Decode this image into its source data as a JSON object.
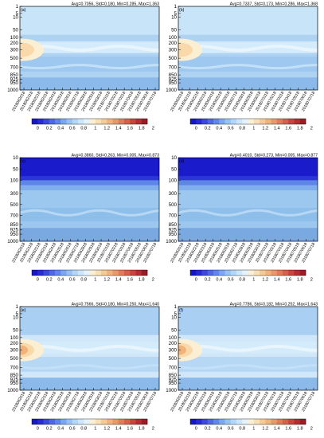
{
  "figure": {
    "colorbar": {
      "tick_labels": [
        "0",
        "0.2",
        "0.4",
        "0.6",
        "0.8",
        "1",
        "1.2",
        "1.4",
        "1.6",
        "1.8",
        "2"
      ],
      "colors": [
        "#1616c8",
        "#2929d6",
        "#3b48de",
        "#4d67e6",
        "#5f86ee",
        "#7aa6f4",
        "#96c2f7",
        "#b3d7fa",
        "#cde6fb",
        "#e4f2fd",
        "#fbf0d6",
        "#f9dfb5",
        "#f6ca93",
        "#f2b37a",
        "#eb9868",
        "#e27c58",
        "#d76049",
        "#c9443c",
        "#b52d32",
        "#9c1b28"
      ]
    }
  },
  "chart_data": [
    {
      "type": "heatmap",
      "panel_label": "(a)",
      "stats": "Avg=0.7056, Std=0.180, Min=0.285, Max=1.363",
      "y_tick_labels": [
        "1",
        "5",
        "10",
        "50",
        "100",
        "200",
        "300",
        "500",
        "700",
        "850",
        "925",
        "950",
        "1000"
      ],
      "x_tick_labels": [
        "2018062018",
        "2018062118",
        "2018062218",
        "2018062318",
        "2018062418",
        "2018062518",
        "2018062618",
        "2018062718",
        "2018062818",
        "2018062918",
        "2018063018",
        "2018070118",
        "2018070218",
        "2018070318",
        "2018070418",
        "2018070518",
        "2018070618",
        "2018070718"
      ],
      "color_scale": [
        0,
        2
      ],
      "features": {
        "peak_value": 1.3,
        "peak_pressure_hpa": 250,
        "top_fill": "#c7e4f8",
        "band_fill": "#aed3f2",
        "low_fill": "#9ec8ef",
        "surface_fill": "#8ab9ea"
      }
    },
    {
      "type": "heatmap",
      "panel_label": "(b)",
      "stats": "Avg=0.7337, Std=0.173, Min=0.286, Max=1.368",
      "y_tick_labels": [
        "1",
        "5",
        "10",
        "50",
        "100",
        "200",
        "300",
        "500",
        "700",
        "850",
        "925",
        "950",
        "1000"
      ],
      "x_tick_labels": [
        "2018062018",
        "2018062118",
        "2018062218",
        "2018062318",
        "2018062418",
        "2018062518",
        "2018062618",
        "2018062718",
        "2018062818",
        "2018062918",
        "2018063018",
        "2018070118",
        "2018070218",
        "2018070318",
        "2018070418",
        "2018070518",
        "2018070618",
        "2018070718"
      ],
      "color_scale": [
        0,
        2
      ],
      "features": {
        "peak_value": 1.3,
        "peak_pressure_hpa": 250,
        "top_fill": "#c7e4f8",
        "band_fill": "#aed3f2",
        "low_fill": "#9ec8ef",
        "surface_fill": "#8ab9ea"
      }
    },
    {
      "type": "heatmap",
      "panel_label": "(c)",
      "stats": "Avg=0.3860, Std=0.263, Min=0.005, Max=0.873",
      "y_tick_labels": [
        "10",
        "50",
        "100",
        "300",
        "500",
        "700",
        "850",
        "925",
        "950",
        "1000"
      ],
      "x_tick_labels": [
        "2018062018",
        "2018062118",
        "2018062218",
        "2018062318",
        "2018062418",
        "2018062518",
        "2018062618",
        "2018062718",
        "2018062818",
        "2018062918",
        "2018063018",
        "2018070118",
        "2018070218",
        "2018070318",
        "2018070418",
        "2018070518",
        "2018070618",
        "2018070718"
      ],
      "color_scale": [
        0,
        2
      ],
      "features": {
        "top_fill": "#1a1ccc",
        "band_fill": "#9cc8ef",
        "low_fill": "#8ebeea",
        "surface_fill": "#7aa9e2"
      }
    },
    {
      "type": "heatmap",
      "panel_label": "(d)",
      "stats": "Avg=0.4010, Std=0.273, Min=0.005, Max=0.877",
      "y_tick_labels": [
        "10",
        "50",
        "100",
        "300",
        "500",
        "700",
        "850",
        "925",
        "950",
        "1000"
      ],
      "x_tick_labels": [
        "2018062018",
        "2018062118",
        "2018062218",
        "2018062318",
        "2018062418",
        "2018062518",
        "2018062618",
        "2018062718",
        "2018062818",
        "2018062918",
        "2018063018",
        "2018070118",
        "2018070218",
        "2018070318",
        "2018070418",
        "2018070518",
        "2018070618",
        "2018070718"
      ],
      "color_scale": [
        0,
        2
      ],
      "features": {
        "top_fill": "#1a1ccc",
        "band_fill": "#9cc8ef",
        "low_fill": "#8ebeea",
        "surface_fill": "#7aa9e2"
      }
    },
    {
      "type": "heatmap",
      "panel_label": "(e)",
      "stats": "Avg=0.7566, Std=0.180, Min=0.250, Max=1.640",
      "y_tick_labels": [
        "1",
        "5",
        "10",
        "50",
        "100",
        "200",
        "300",
        "500",
        "700",
        "850",
        "925",
        "950",
        "1000"
      ],
      "x_tick_labels": [
        "2018062018",
        "2018062118",
        "2018062218",
        "2018062318",
        "2018062418",
        "2018062518",
        "2018062618",
        "2018062718",
        "2018062818",
        "2018062918",
        "2018063018",
        "2018070118",
        "2018070218",
        "2018070318",
        "2018070418",
        "2018070518",
        "2018070618",
        "2018070718"
      ],
      "color_scale": [
        0,
        2
      ],
      "features": {
        "peak_value": 1.6,
        "peak_pressure_hpa": 250,
        "top_fill": "#a9cff2",
        "band_fill": "#cfe7f9",
        "low_fill": "#b6d8f5",
        "surface_fill": "#8ab9ea"
      }
    },
    {
      "type": "heatmap",
      "panel_label": "(f)",
      "stats": "Avg=0.7786, Std=0.182, Min=0.252, Max=1.643",
      "y_tick_labels": [
        "1",
        "5",
        "10",
        "50",
        "100",
        "200",
        "300",
        "500",
        "700",
        "850",
        "925",
        "950",
        "1000"
      ],
      "x_tick_labels": [
        "2018062018",
        "2018062118",
        "2018062218",
        "2018062318",
        "2018062418",
        "2018062518",
        "2018062618",
        "2018062718",
        "2018062818",
        "2018062918",
        "2018063018",
        "2018070118",
        "2018070218",
        "2018070318",
        "2018070418",
        "2018070518",
        "2018070618",
        "2018070718"
      ],
      "color_scale": [
        0,
        2
      ],
      "features": {
        "peak_value": 1.6,
        "peak_pressure_hpa": 250,
        "top_fill": "#a9cff2",
        "band_fill": "#cfe7f9",
        "low_fill": "#b6d8f5",
        "surface_fill": "#8ab9ea"
      }
    }
  ]
}
